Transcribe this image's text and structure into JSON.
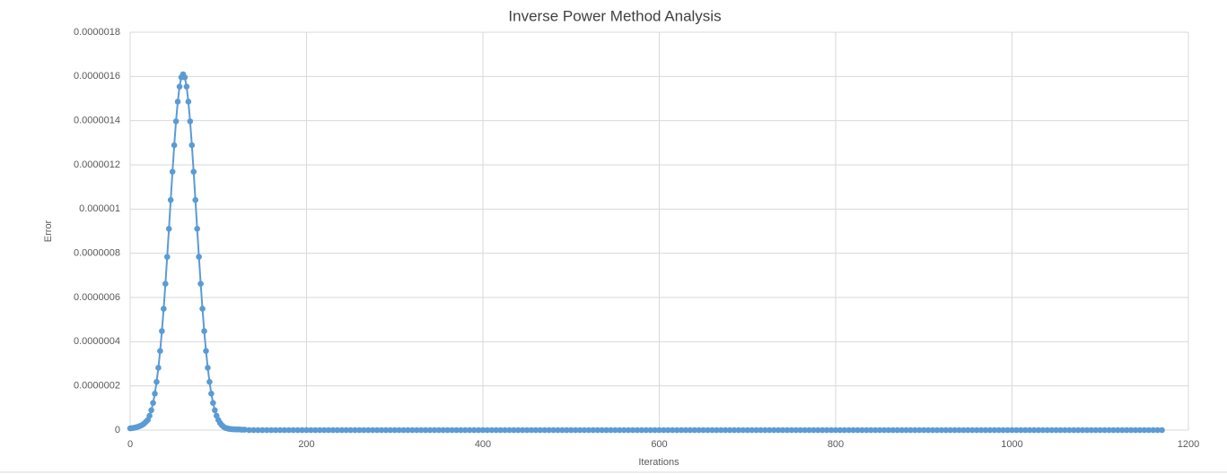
{
  "chart_data": {
    "type": "scatter",
    "title": "Inverse Power Method Analysis",
    "x_label": "Iterations",
    "y_label": "Error",
    "xlim": [
      0,
      1200
    ],
    "xticks": [
      0,
      200,
      400,
      600,
      800,
      1000,
      1200
    ],
    "ylim": [
      0,
      1.8e-06
    ],
    "yticks": [
      0,
      {
        "value": 2e-07,
        "label": "0.0000002"
      },
      {
        "value": 4e-07,
        "label": "0.0000004"
      },
      {
        "value": 6e-07,
        "label": "0.0000006"
      },
      {
        "value": 8e-07,
        "label": "0.0000008"
      },
      {
        "value": 1e-06,
        "label": "0.000001"
      },
      {
        "value": 1.2e-06,
        "label": "0.0000012"
      },
      {
        "value": 1.4e-06,
        "label": "0.0000014"
      },
      {
        "value": 1.6e-06,
        "label": "0.0000016"
      },
      {
        "value": 1.8e-06,
        "label": "0.0000018"
      }
    ],
    "grid": true,
    "series": [
      {
        "color": "#5b9bd5",
        "x": [
          0,
          2,
          4,
          6,
          8,
          10,
          12,
          14,
          16,
          18,
          20,
          22,
          24,
          26,
          28,
          30,
          32,
          34,
          36,
          38,
          40,
          42,
          44,
          46,
          48,
          50,
          52,
          54,
          56,
          58,
          60,
          62,
          64,
          66,
          68,
          70,
          72,
          74,
          76,
          78,
          80,
          82,
          84,
          86,
          88,
          90,
          92,
          94,
          96,
          98,
          100,
          102,
          104,
          106,
          108,
          110,
          112,
          114,
          116,
          118,
          120,
          122,
          124,
          126,
          128,
          130,
          135,
          140,
          145,
          150,
          155,
          160,
          165,
          170,
          175,
          180,
          185,
          190,
          195,
          200,
          205,
          210,
          215,
          220,
          225,
          230,
          235,
          240,
          245,
          250,
          255,
          260,
          265,
          270,
          275,
          280,
          285,
          290,
          295,
          300,
          305,
          310,
          315,
          320,
          325,
          330,
          335,
          340,
          345,
          350,
          355,
          360,
          365,
          370,
          375,
          380,
          385,
          390,
          395,
          400,
          405,
          410,
          415,
          420,
          425,
          430,
          435,
          440,
          445,
          450,
          455,
          460,
          465,
          470,
          475,
          480,
          485,
          490,
          495,
          500,
          505,
          510,
          515,
          520,
          525,
          530,
          535,
          540,
          545,
          550,
          555,
          560,
          565,
          570,
          575,
          580,
          585,
          590,
          595,
          600,
          605,
          610,
          615,
          620,
          625,
          630,
          635,
          640,
          645,
          650,
          655,
          660,
          665,
          670,
          675,
          680,
          685,
          690,
          695,
          700,
          705,
          710,
          715,
          720,
          725,
          730,
          735,
          740,
          745,
          750,
          755,
          760,
          765,
          770,
          775,
          780,
          785,
          790,
          795,
          800,
          805,
          810,
          815,
          820,
          825,
          830,
          835,
          840,
          845,
          850,
          855,
          860,
          865,
          870,
          875,
          880,
          885,
          890,
          895,
          900,
          905,
          910,
          915,
          920,
          925,
          930,
          935,
          940,
          945,
          950,
          955,
          960,
          965,
          970,
          975,
          980,
          985,
          990,
          995,
          1000,
          1005,
          1010,
          1015,
          1020,
          1025,
          1030,
          1035,
          1040,
          1045,
          1050,
          1055,
          1060,
          1065,
          1070,
          1075,
          1080,
          1085,
          1090,
          1095,
          1100,
          1105,
          1110,
          1115,
          1120,
          1125,
          1130,
          1135,
          1140,
          1145,
          1150,
          1155,
          1160,
          1165,
          1170
        ],
        "values": [
          8e-09,
          9e-09,
          1e-08,
          1.2e-08,
          1.4e-08,
          1.7e-08,
          2e-08,
          2.4e-08,
          3e-08,
          3.8e-08,
          4.6e-08,
          6.5e-08,
          9e-08,
          1.23e-07,
          1.65e-07,
          2.18e-07,
          2.82e-07,
          3.58e-07,
          4.48e-07,
          5.49e-07,
          6.62e-07,
          7.84e-07,
          9.11e-07,
          1.041e-06,
          1.169e-06,
          1.289e-06,
          1.397e-06,
          1.486e-06,
          1.554e-06,
          1.596e-06,
          1.61e-06,
          1.596e-06,
          1.554e-06,
          1.486e-06,
          1.397e-06,
          1.289e-06,
          1.169e-06,
          1.041e-06,
          9.11e-07,
          7.84e-07,
          6.62e-07,
          5.49e-07,
          4.48e-07,
          3.58e-07,
          2.82e-07,
          2.18e-07,
          1.65e-07,
          1.23e-07,
          9e-08,
          6.5e-08,
          4.6e-08,
          3.2e-08,
          2.2e-08,
          1.5e-08,
          1e-08,
          8e-09,
          6e-09,
          5e-09,
          4e-09,
          4e-09,
          3e-09,
          3e-09,
          3e-09,
          2e-09,
          2e-09,
          2e-09,
          0,
          0,
          0,
          0,
          0,
          0,
          0,
          0,
          0,
          0,
          0,
          0,
          0,
          0,
          0,
          0,
          0,
          0,
          0,
          0,
          0,
          0,
          0,
          0,
          0,
          0,
          0,
          0,
          0,
          0,
          0,
          0,
          0,
          0,
          0,
          0,
          0,
          0,
          0,
          0,
          0,
          0,
          0,
          0,
          0,
          0,
          0,
          0,
          0,
          0,
          0,
          0,
          0,
          0,
          0,
          0,
          0,
          0,
          0,
          0,
          0,
          0,
          0,
          0,
          0,
          0,
          0,
          0,
          0,
          0,
          0,
          0,
          0,
          0,
          0,
          0,
          0,
          0,
          0,
          0,
          0,
          0,
          0,
          0,
          0,
          0,
          0,
          0,
          0,
          0,
          0,
          0,
          0,
          0,
          0,
          0,
          0,
          0,
          0,
          0,
          0,
          0,
          0,
          0,
          0,
          0,
          0,
          0,
          0,
          0,
          0,
          0,
          0,
          0,
          0,
          0,
          0,
          0,
          0,
          0,
          0,
          0,
          0,
          0,
          0,
          0,
          0,
          0,
          0,
          0,
          0,
          0,
          0,
          0,
          0,
          0,
          0,
          0,
          0,
          0,
          0,
          0,
          0,
          0,
          0,
          0,
          0,
          0,
          0,
          0,
          0,
          0,
          0,
          0,
          0,
          0,
          0,
          0,
          0,
          0,
          0,
          0,
          0,
          0,
          0,
          0,
          0,
          0,
          0,
          0,
          0,
          0,
          0,
          0,
          0,
          0,
          0,
          0,
          0,
          0,
          0,
          0,
          0,
          0,
          0,
          0,
          0,
          0,
          0,
          0,
          0,
          0,
          0,
          0,
          0,
          0,
          0,
          0,
          0,
          0,
          0,
          0,
          0,
          0,
          0,
          0,
          0,
          0
        ]
      }
    ]
  }
}
